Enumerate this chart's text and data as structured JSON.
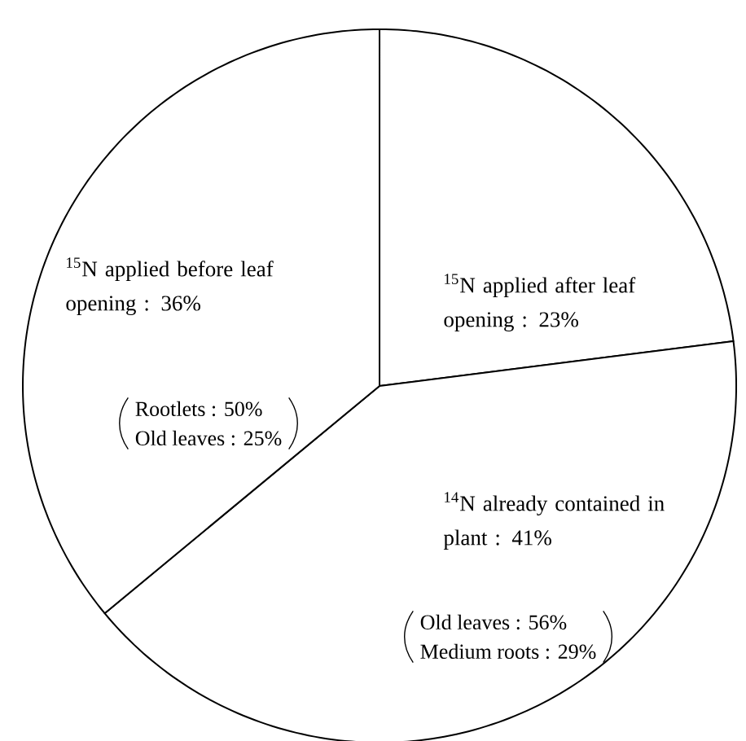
{
  "chart_data": {
    "type": "pie",
    "categories": [
      "$^{15}$N applied after leaf opening",
      "$^{14}$N already contained in plant",
      "$^{15}$N applied before leaf opening"
    ],
    "values": [
      23,
      41,
      36
    ],
    "value_labels": [
      ": 23%",
      ": 41%",
      ": 36%"
    ],
    "colors": [
      "#ffffff",
      "#ffffff",
      "#ffffff"
    ],
    "annotations": [
      "Rootlets : 50%",
      "Old leaves : 25%",
      "Old leaves : 56%",
      "Medium roots : 29%"
    ]
  }
}
